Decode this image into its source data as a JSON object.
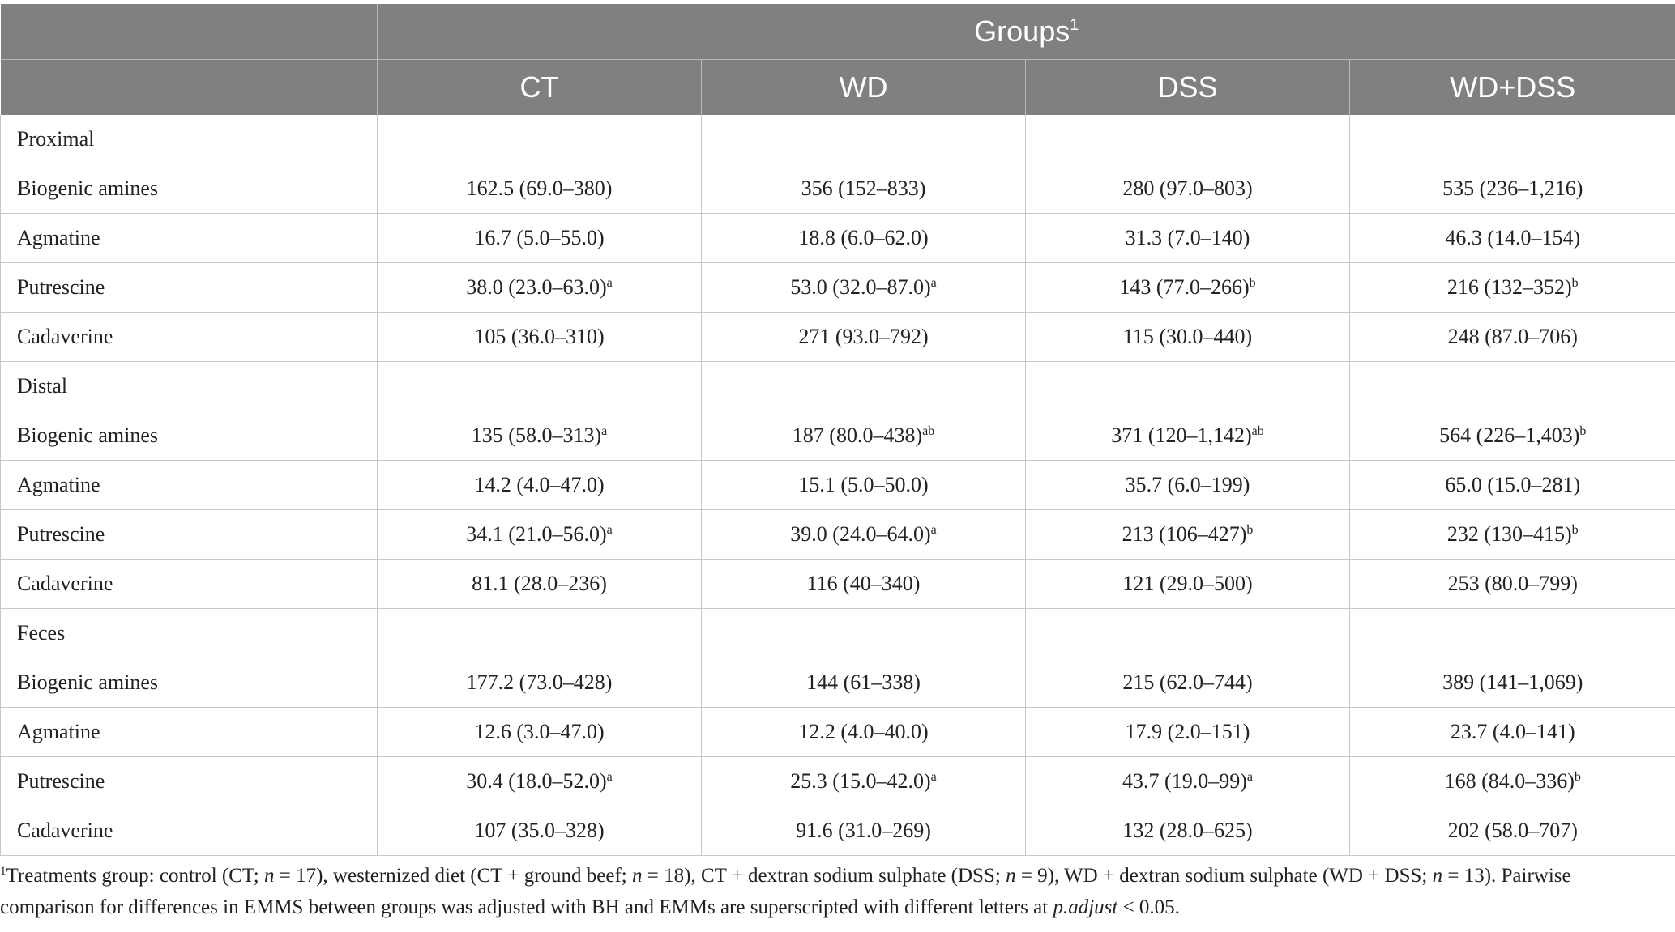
{
  "header": {
    "groups_label": "Groups",
    "groups_footnote_mark": "1",
    "columns": [
      "CT",
      "WD",
      "DSS",
      "WD+DSS"
    ]
  },
  "sections": [
    {
      "name": "Proximal",
      "rows": [
        {
          "label": "Biogenic amines",
          "cells": [
            {
              "v": "162.5 (69.0–380)",
              "s": ""
            },
            {
              "v": "356 (152–833)",
              "s": ""
            },
            {
              "v": "280 (97.0–803)",
              "s": ""
            },
            {
              "v": "535 (236–1,216)",
              "s": ""
            }
          ]
        },
        {
          "label": "Agmatine",
          "cells": [
            {
              "v": "16.7 (5.0–55.0)",
              "s": ""
            },
            {
              "v": "18.8 (6.0–62.0)",
              "s": ""
            },
            {
              "v": "31.3 (7.0–140)",
              "s": ""
            },
            {
              "v": "46.3 (14.0–154)",
              "s": ""
            }
          ]
        },
        {
          "label": "Putrescine",
          "cells": [
            {
              "v": "38.0 (23.0–63.0)",
              "s": "a"
            },
            {
              "v": "53.0 (32.0–87.0)",
              "s": "a"
            },
            {
              "v": "143 (77.0–266)",
              "s": "b"
            },
            {
              "v": "216 (132–352)",
              "s": "b"
            }
          ]
        },
        {
          "label": "Cadaverine",
          "cells": [
            {
              "v": "105 (36.0–310)",
              "s": ""
            },
            {
              "v": "271 (93.0–792)",
              "s": ""
            },
            {
              "v": "115 (30.0–440)",
              "s": ""
            },
            {
              "v": "248 (87.0–706)",
              "s": ""
            }
          ]
        }
      ]
    },
    {
      "name": "Distal",
      "rows": [
        {
          "label": "Biogenic amines",
          "cells": [
            {
              "v": "135 (58.0–313)",
              "s": "a"
            },
            {
              "v": "187 (80.0–438)",
              "s": "ab"
            },
            {
              "v": "371 (120–1,142)",
              "s": "ab"
            },
            {
              "v": "564 (226–1,403)",
              "s": "b"
            }
          ]
        },
        {
          "label": "Agmatine",
          "cells": [
            {
              "v": "14.2 (4.0–47.0)",
              "s": ""
            },
            {
              "v": "15.1 (5.0–50.0)",
              "s": ""
            },
            {
              "v": "35.7 (6.0–199)",
              "s": ""
            },
            {
              "v": "65.0 (15.0–281)",
              "s": ""
            }
          ]
        },
        {
          "label": "Putrescine",
          "cells": [
            {
              "v": "34.1 (21.0–56.0)",
              "s": "a"
            },
            {
              "v": "39.0 (24.0–64.0)",
              "s": "a"
            },
            {
              "v": "213 (106–427)",
              "s": "b"
            },
            {
              "v": "232 (130–415)",
              "s": "b"
            }
          ]
        },
        {
          "label": "Cadaverine",
          "cells": [
            {
              "v": "81.1 (28.0–236)",
              "s": ""
            },
            {
              "v": "116 (40–340)",
              "s": ""
            },
            {
              "v": "121 (29.0–500)",
              "s": ""
            },
            {
              "v": "253 (80.0–799)",
              "s": ""
            }
          ]
        }
      ]
    },
    {
      "name": "Feces",
      "rows": [
        {
          "label": "Biogenic amines",
          "cells": [
            {
              "v": "177.2 (73.0–428)",
              "s": ""
            },
            {
              "v": "144 (61–338)",
              "s": ""
            },
            {
              "v": "215 (62.0–744)",
              "s": ""
            },
            {
              "v": "389 (141–1,069)",
              "s": ""
            }
          ]
        },
        {
          "label": "Agmatine",
          "cells": [
            {
              "v": "12.6 (3.0–47.0)",
              "s": ""
            },
            {
              "v": "12.2 (4.0–40.0)",
              "s": ""
            },
            {
              "v": "17.9 (2.0–151)",
              "s": ""
            },
            {
              "v": "23.7 (4.0–141)",
              "s": ""
            }
          ]
        },
        {
          "label": "Putrescine",
          "cells": [
            {
              "v": "30.4 (18.0–52.0)",
              "s": "a"
            },
            {
              "v": "25.3 (15.0–42.0)",
              "s": "a"
            },
            {
              "v": "43.7 (19.0–99)",
              "s": "a"
            },
            {
              "v": "168 (84.0–336)",
              "s": "b"
            }
          ]
        },
        {
          "label": "Cadaverine",
          "cells": [
            {
              "v": "107 (35.0–328)",
              "s": ""
            },
            {
              "v": "91.6 (31.0–269)",
              "s": ""
            },
            {
              "v": "132 (28.0–625)",
              "s": ""
            },
            {
              "v": "202 (58.0–707)",
              "s": ""
            }
          ]
        }
      ]
    }
  ],
  "footnote": {
    "mark": "1",
    "part1": "Treatments group: control (CT; ",
    "n1_var": "n",
    "part2": " = 17), westernized diet (CT + ground beef; ",
    "n2_var": "n",
    "part3": " = 18), CT + dextran sodium sulphate (DSS; ",
    "n3_var": "n",
    "part4": " = 9), WD + dextran sodium sulphate (WD + DSS; ",
    "n4_var": "n",
    "part5": " = 13). Pairwise comparison for differences in EMMS between groups was adjusted with BH and EMMs are superscripted with different letters at ",
    "padj_var": "p.adjust",
    "part6": " < 0.05."
  }
}
